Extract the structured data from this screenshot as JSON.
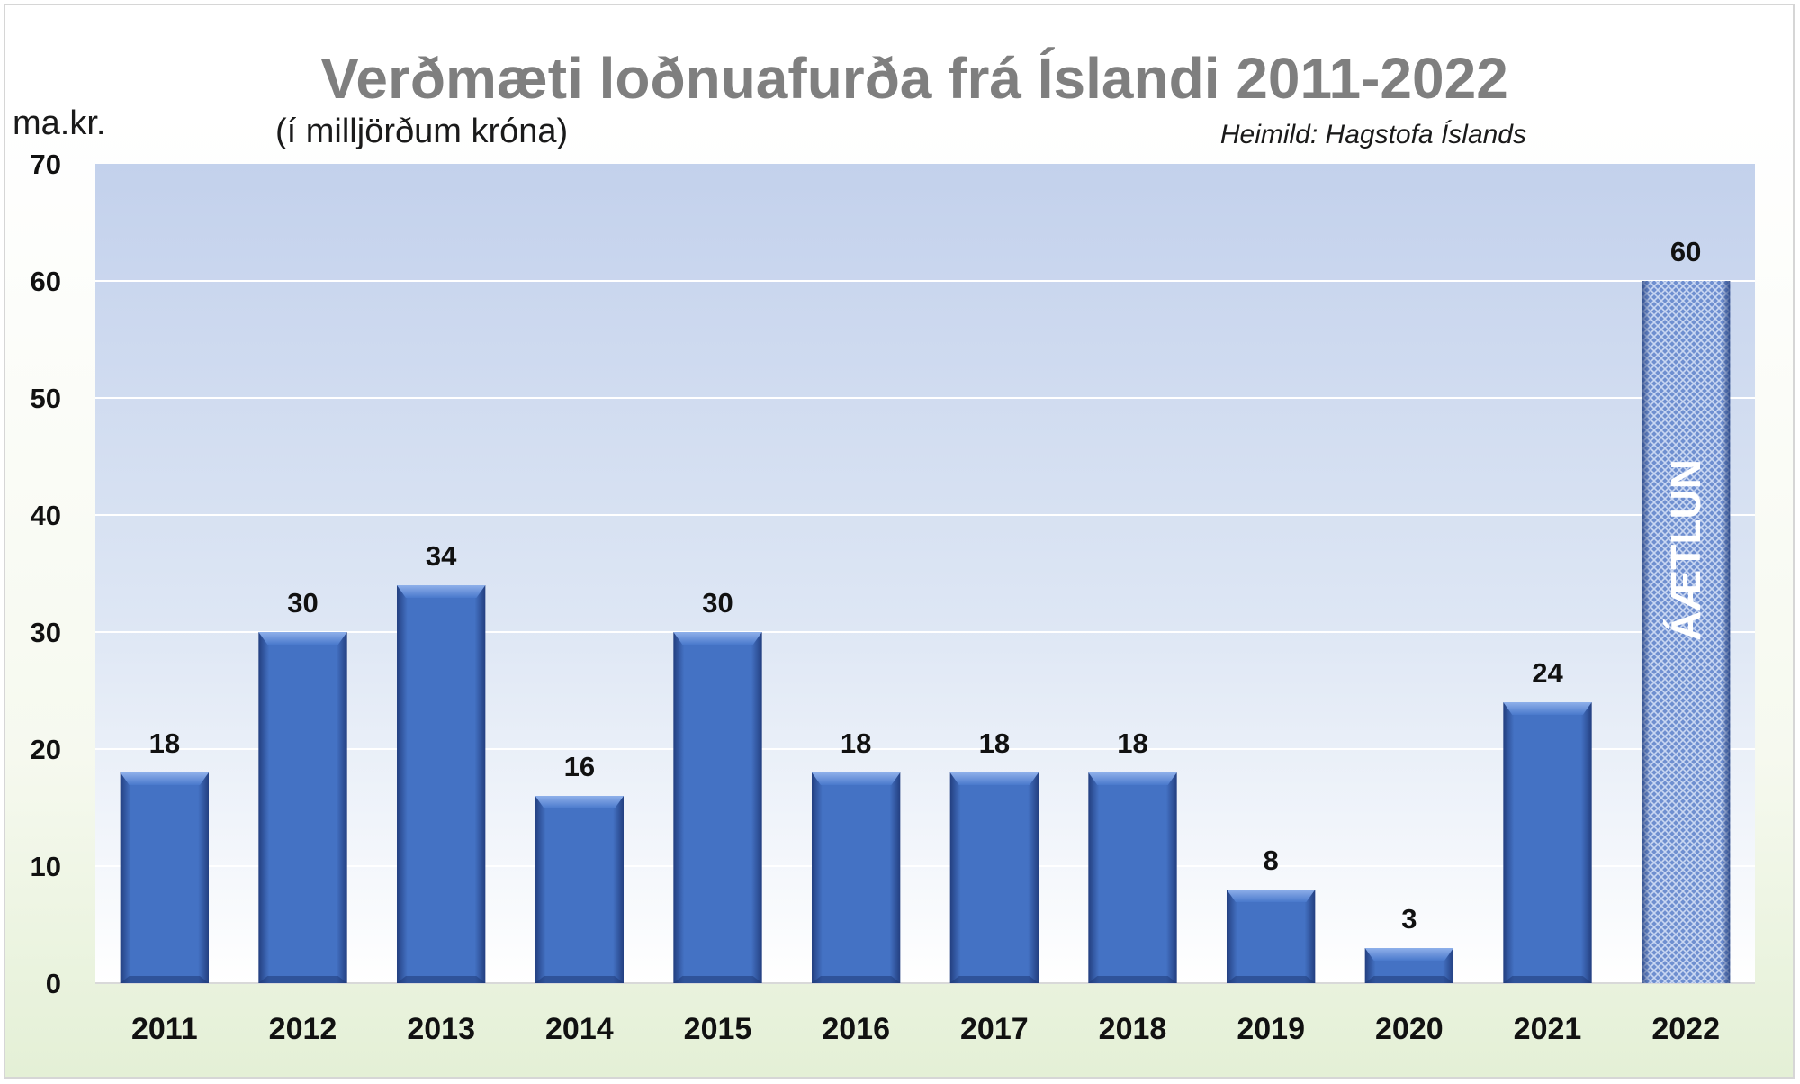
{
  "chart_data": {
    "type": "bar",
    "title": "Verðmæti loðnuafurða frá Íslandi 2011-2022",
    "subtitle": "(í milljörðum króna)",
    "ylabel": "ma.kr.",
    "source": "Heimild: Hagstofa Íslands",
    "categories": [
      "2011",
      "2012",
      "2013",
      "2014",
      "2015",
      "2016",
      "2017",
      "2018",
      "2019",
      "2020",
      "2021",
      "2022"
    ],
    "values": [
      18,
      30,
      34,
      16,
      30,
      18,
      18,
      18,
      8,
      3,
      24,
      60
    ],
    "data_labels": [
      "18",
      "30",
      "34",
      "16",
      "30",
      "18",
      "18",
      "18",
      "8",
      "3",
      "24",
      "60"
    ],
    "ylim": [
      0,
      70
    ],
    "yticks": [
      "0",
      "10",
      "20",
      "30",
      "40",
      "50",
      "60",
      "70"
    ],
    "estimate_label": "ÁÆTLUN",
    "estimate_index": 11,
    "grid": true,
    "colors": {
      "bar": "#4472c4",
      "bar_dark": "#1f3a78",
      "estimate": "#6f8fd0",
      "plot_top": "#c3d1ec",
      "plot_bottom": "#ffffff",
      "gridline": "#ffffff"
    }
  }
}
